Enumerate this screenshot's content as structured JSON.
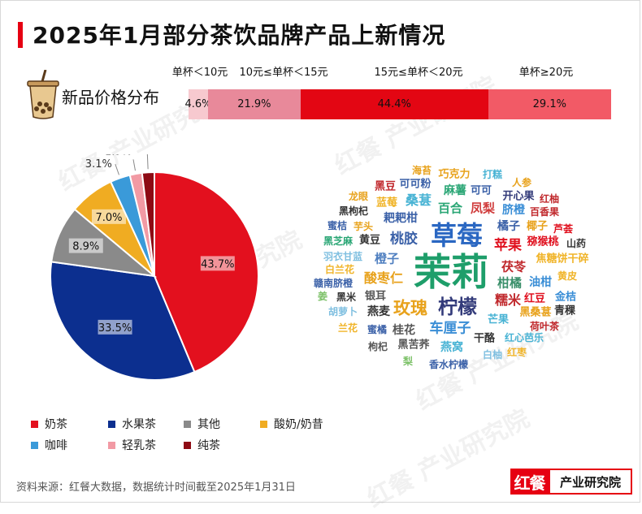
{
  "title": "2025年1月部分茶饮品牌产品上新情况",
  "price_section": {
    "label": "新品价格分布",
    "segments": [
      {
        "range": "单杯＜10元",
        "value": 4.6,
        "label": "4.6%",
        "color": "#f7c9cf"
      },
      {
        "range": "10元≤单杯＜15元",
        "value": 21.9,
        "label": "21.9%",
        "color": "#e8899a"
      },
      {
        "range": "15元≤单杯＜20元",
        "value": 44.4,
        "label": "44.4%",
        "color": "#e30613"
      },
      {
        "range": "单杯≥20元",
        "value": 29.1,
        "label": "29.1%",
        "color": "#f25a66"
      }
    ]
  },
  "chart_data": {
    "type": "pie",
    "slices": [
      {
        "name": "奶茶",
        "value": 43.7,
        "label": "43.7%",
        "color": "#e3101e"
      },
      {
        "name": "水果茶",
        "value": 33.5,
        "label": "33.5%",
        "color": "#0c2f8f"
      },
      {
        "name": "其他",
        "value": 8.9,
        "label": "8.9%",
        "color": "#8a8a8a"
      },
      {
        "name": "酸奶/奶昔",
        "value": 7.0,
        "label": "7.0%",
        "color": "#f0ac22"
      },
      {
        "name": "咖啡",
        "value": 3.1,
        "label": "3.1%",
        "color": "#3a9ad9"
      },
      {
        "name": "轻乳茶",
        "value": 1.9,
        "label": "1.9%",
        "color": "#f29aa4"
      },
      {
        "name": "纯茶",
        "value": 1.9,
        "label": "1.9%",
        "color": "#8e0a14"
      }
    ]
  },
  "word_cloud": [
    {
      "text": "茉莉",
      "color": "#1e9e6a",
      "size": 46
    },
    {
      "text": "草莓",
      "color": "#2a67c2",
      "size": 32
    },
    {
      "text": "柠檬",
      "color": "#333b7a",
      "size": 24
    },
    {
      "text": "玫瑰",
      "color": "#e8a21c",
      "size": 21
    },
    {
      "text": "桃胶",
      "color": "#3b61a8",
      "size": 17
    },
    {
      "text": "苹果",
      "color": "#e0101e",
      "size": 17
    },
    {
      "text": "车厘子",
      "color": "#3a8ed6",
      "size": 17
    },
    {
      "text": "糯米",
      "color": "#c0282c",
      "size": 16
    },
    {
      "text": "酸枣仁",
      "color": "#e8a21c",
      "size": 16
    },
    {
      "text": "桑葚",
      "color": "#48b3d4",
      "size": 16
    },
    {
      "text": "百合",
      "color": "#2aa675",
      "size": 15
    },
    {
      "text": "凤梨",
      "color": "#d03b3b",
      "size": 15
    },
    {
      "text": "橙子",
      "color": "#4f7fc0",
      "size": 15
    },
    {
      "text": "柑橘",
      "color": "#3a8f6a",
      "size": 15
    },
    {
      "text": "茯苓",
      "color": "#c0282c",
      "size": 15
    },
    {
      "text": "油柑",
      "color": "#3a8ed6",
      "size": 14
    },
    {
      "text": "燕麦",
      "color": "#333",
      "size": 14
    },
    {
      "text": "桂花",
      "color": "#555",
      "size": 14
    },
    {
      "text": "燕窝",
      "color": "#48b3d4",
      "size": 14
    },
    {
      "text": "麻薯",
      "color": "#2aa675",
      "size": 14
    },
    {
      "text": "耙耙柑",
      "color": "#3b61a8",
      "size": 14
    },
    {
      "text": "橘子",
      "color": "#3b61a8",
      "size": 14
    },
    {
      "text": "脐橙",
      "color": "#3a8ed6",
      "size": 14
    },
    {
      "text": "黄豆",
      "color": "#333",
      "size": 13
    },
    {
      "text": "银耳",
      "color": "#555",
      "size": 13
    },
    {
      "text": "芒果",
      "color": "#48b3d4",
      "size": 13
    },
    {
      "text": "干酪",
      "color": "#333",
      "size": 13
    },
    {
      "text": "黑苦荞",
      "color": "#555",
      "size": 13
    },
    {
      "text": "猕猴桃",
      "color": "#e0101e",
      "size": 13
    },
    {
      "text": "焦糖饼干碎",
      "color": "#f0b429",
      "size": 13
    },
    {
      "text": "红豆",
      "color": "#e0101e",
      "size": 13
    },
    {
      "text": "金桔",
      "color": "#3a8ed6",
      "size": 13
    },
    {
      "text": "黑桑葚",
      "color": "#e8a21c",
      "size": 13
    },
    {
      "text": "青稞",
      "color": "#333",
      "size": 13
    },
    {
      "text": "椰子",
      "color": "#e8a21c",
      "size": 13
    },
    {
      "text": "可可粉",
      "color": "#3b61a8",
      "size": 13
    },
    {
      "text": "巧克力",
      "color": "#e8a21c",
      "size": 13
    },
    {
      "text": "打糕",
      "color": "#48b3d4",
      "size": 12
    },
    {
      "text": "海苔",
      "color": "#e8a21c",
      "size": 12
    },
    {
      "text": "可可",
      "color": "#3b61a8",
      "size": 13
    },
    {
      "text": "黑豆",
      "color": "#c0282c",
      "size": 13
    },
    {
      "text": "蓝莓",
      "color": "#f0b429",
      "size": 13
    },
    {
      "text": "人参",
      "color": "#e8a21c",
      "size": 12
    },
    {
      "text": "开心果",
      "color": "#333b7a",
      "size": 13
    },
    {
      "text": "红柚",
      "color": "#c0282c",
      "size": 12
    },
    {
      "text": "龙眼",
      "color": "#e8a21c",
      "size": 12
    },
    {
      "text": "黑枸杞",
      "color": "#333",
      "size": 12
    },
    {
      "text": "百香果",
      "color": "#c0282c",
      "size": 12
    },
    {
      "text": "蜜桔",
      "color": "#3b61a8",
      "size": 12
    },
    {
      "text": "芋头",
      "color": "#e8a21c",
      "size": 12
    },
    {
      "text": "芦荟",
      "color": "#e0101e",
      "size": 12
    },
    {
      "text": "黑芝麻",
      "color": "#2aa675",
      "size": 12
    },
    {
      "text": "山药",
      "color": "#333",
      "size": 12
    },
    {
      "text": "羽衣甘蓝",
      "color": "#7fbfe0",
      "size": 12
    },
    {
      "text": "白兰花",
      "color": "#f0b429",
      "size": 12
    },
    {
      "text": "黄皮",
      "color": "#f0b429",
      "size": 12
    },
    {
      "text": "赣南脐橙",
      "color": "#3b61a8",
      "size": 12
    },
    {
      "text": "姜",
      "color": "#7ec26a",
      "size": 12
    },
    {
      "text": "黑米",
      "color": "#333",
      "size": 12
    },
    {
      "text": "胡萝卜",
      "color": "#7fbfe0",
      "size": 12
    },
    {
      "text": "兰花",
      "color": "#f0b429",
      "size": 12
    },
    {
      "text": "蜜橘",
      "color": "#3b61a8",
      "size": 12
    },
    {
      "text": "荷叶茶",
      "color": "#c0282c",
      "size": 12
    },
    {
      "text": "红心芭乐",
      "color": "#48b3d4",
      "size": 12
    },
    {
      "text": "枸杞",
      "color": "#555",
      "size": 12
    },
    {
      "text": "白柚",
      "color": "#7fbfe0",
      "size": 12
    },
    {
      "text": "红枣",
      "color": "#f0b429",
      "size": 12
    },
    {
      "text": "梨",
      "color": "#7ec26a",
      "size": 12
    },
    {
      "text": "香水柠檬",
      "color": "#3b61a8",
      "size": 12
    }
  ],
  "legend_title": "",
  "source": "资料来源：红餐大数据，数据统计时间截至2025年1月31日",
  "logo": {
    "mark": "红餐",
    "text": "产业研究院"
  },
  "watermark": "红餐 产业研究院"
}
